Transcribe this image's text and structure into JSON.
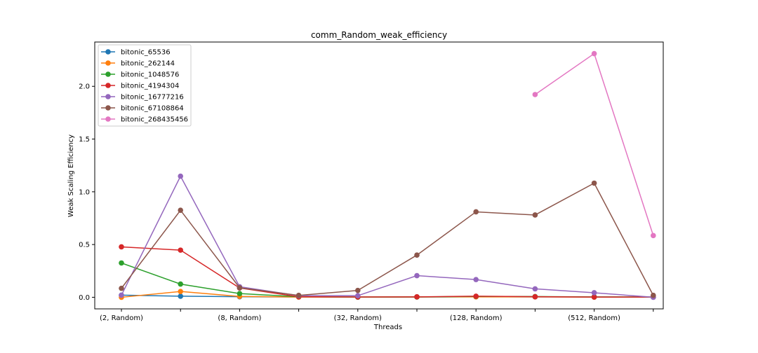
{
  "chart_data": {
    "type": "line",
    "title": "comm_Random_weak_efficiency",
    "xlabel": "Threads",
    "ylabel": "Weak Scaling Efficiency",
    "categories": [
      "(2, Random)",
      "",
      "(8, Random)",
      "",
      "(32, Random)",
      "",
      "(128, Random)",
      "",
      "(512, Random)",
      ""
    ],
    "ylim": [
      -0.11,
      2.42
    ],
    "yticks": [
      0.0,
      0.5,
      1.0,
      1.5,
      2.0
    ],
    "ytick_labels": [
      "0.0",
      "0.5",
      "1.0",
      "1.5",
      "2.0"
    ],
    "grid": false,
    "legend": "top-left",
    "series": [
      {
        "name": "bitonic_65536",
        "color": "#1f77b4",
        "values": [
          0.02,
          0.01,
          0.005,
          0.003,
          0.002,
          0.003,
          0.005,
          0.004,
          0.003,
          0.002
        ]
      },
      {
        "name": "bitonic_262144",
        "color": "#ff7f0e",
        "values": [
          0.0,
          0.055,
          0.008,
          0.002,
          0.002,
          0.003,
          0.004,
          0.004,
          0.002,
          0.002
        ]
      },
      {
        "name": "bitonic_1048576",
        "color": "#2ca02c",
        "values": [
          0.325,
          0.125,
          0.035,
          0.005,
          0.002,
          0.003,
          0.008,
          0.007,
          0.003,
          0.002
        ]
      },
      {
        "name": "bitonic_4194304",
        "color": "#d62728",
        "values": [
          0.478,
          0.447,
          0.088,
          0.005,
          0.003,
          0.004,
          0.01,
          0.005,
          0.002,
          0.002
        ]
      },
      {
        "name": "bitonic_16777216",
        "color": "#9467bd",
        "values": [
          0.02,
          1.148,
          0.1,
          0.015,
          0.015,
          0.205,
          0.168,
          0.08,
          0.043,
          0.0
        ]
      },
      {
        "name": "bitonic_67108864",
        "color": "#8c564b",
        "values": [
          0.085,
          0.825,
          0.09,
          0.018,
          0.065,
          0.4,
          0.81,
          0.78,
          1.082,
          0.018
        ]
      },
      {
        "name": "bitonic_268435456",
        "color": "#e377c2",
        "values": [
          null,
          null,
          null,
          null,
          null,
          null,
          null,
          1.922,
          2.31,
          0.585
        ]
      }
    ]
  }
}
